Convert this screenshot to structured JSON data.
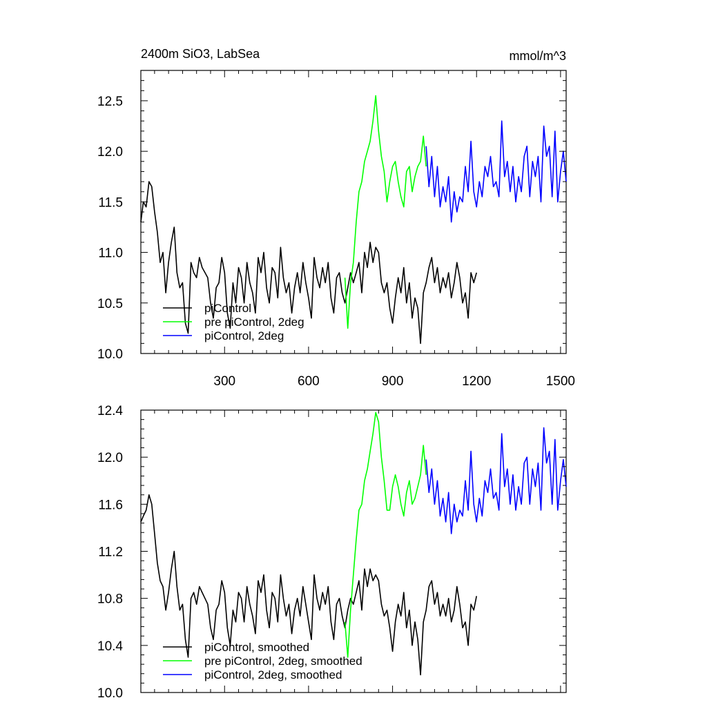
{
  "chart_data": [
    {
      "type": "line",
      "title_left": "2400m SiO3, LabSea",
      "title_right": "mmol/m^3",
      "xlim": [
        1,
        1520
      ],
      "ylim": [
        10.0,
        12.8
      ],
      "x_ticks": [
        300,
        600,
        900,
        1200,
        1500
      ],
      "x_tick_labels": [
        "300",
        "600",
        "900",
        "1200",
        "1500"
      ],
      "y_ticks": [
        10.0,
        10.5,
        11.0,
        11.5,
        12.0,
        12.5
      ],
      "y_tick_labels": [
        "10.0",
        "10.5",
        "11.0",
        "11.5",
        "12.0",
        "12.5"
      ],
      "legend_position": "bottom-left",
      "series": [
        {
          "name": "piControl",
          "color": "#000000",
          "x": [
            1,
            10,
            20,
            30,
            40,
            50,
            60,
            70,
            80,
            90,
            100,
            110,
            120,
            130,
            140,
            150,
            160,
            170,
            180,
            190,
            200,
            210,
            220,
            230,
            240,
            250,
            260,
            270,
            280,
            290,
            300,
            310,
            320,
            330,
            340,
            350,
            360,
            370,
            380,
            390,
            400,
            410,
            420,
            430,
            440,
            450,
            460,
            470,
            480,
            490,
            500,
            510,
            520,
            530,
            540,
            550,
            560,
            570,
            580,
            590,
            600,
            610,
            620,
            630,
            640,
            650,
            660,
            670,
            680,
            690,
            700,
            710,
            720,
            730,
            740,
            750,
            760,
            770,
            780,
            790,
            800,
            810,
            820,
            830,
            840,
            850,
            860,
            870,
            880,
            890,
            900,
            910,
            920,
            930,
            940,
            950,
            960,
            970,
            980,
            990,
            1000,
            1010,
            1020,
            1030,
            1040,
            1050,
            1060,
            1070,
            1080,
            1090,
            1100,
            1110,
            1120,
            1130,
            1140,
            1150,
            1160,
            1170,
            1180,
            1190,
            1200
          ],
          "y": [
            11.3,
            11.5,
            11.45,
            11.7,
            11.65,
            11.4,
            11.2,
            10.9,
            11.0,
            10.6,
            10.9,
            11.1,
            11.25,
            10.8,
            10.65,
            10.7,
            10.3,
            10.2,
            10.9,
            10.8,
            10.75,
            10.95,
            10.85,
            10.8,
            10.75,
            10.5,
            10.35,
            10.65,
            10.7,
            10.95,
            10.8,
            10.4,
            10.25,
            10.7,
            10.5,
            10.85,
            10.75,
            10.5,
            10.9,
            10.7,
            10.6,
            10.4,
            10.95,
            10.8,
            11.0,
            10.65,
            10.5,
            10.85,
            10.8,
            10.55,
            11.05,
            10.75,
            10.6,
            10.7,
            10.4,
            10.65,
            10.8,
            10.6,
            10.9,
            10.7,
            10.55,
            10.35,
            10.95,
            10.75,
            10.65,
            10.85,
            10.7,
            10.9,
            10.55,
            10.4,
            10.75,
            10.8,
            10.6,
            10.5,
            10.65,
            10.8,
            10.7,
            10.8,
            10.9,
            10.6,
            11.0,
            10.85,
            11.1,
            10.9,
            11.05,
            11.0,
            10.7,
            10.6,
            10.7,
            10.45,
            10.3,
            10.55,
            10.75,
            10.6,
            10.85,
            10.5,
            10.7,
            10.35,
            10.55,
            10.45,
            10.1,
            10.6,
            10.7,
            10.85,
            10.95,
            10.7,
            10.85,
            10.6,
            10.75,
            10.65,
            10.8,
            10.55,
            10.7,
            10.9,
            10.75,
            10.5,
            10.6,
            10.35,
            10.8,
            10.7,
            10.8
          ]
        },
        {
          "name": "pre piControl, 2deg",
          "color": "#00ff00",
          "x": [
            730,
            740,
            750,
            760,
            770,
            780,
            790,
            800,
            810,
            820,
            830,
            840,
            850,
            860,
            870,
            880,
            890,
            900,
            910,
            920,
            930,
            940,
            950,
            960,
            970,
            980,
            990,
            1000,
            1010,
            1020
          ],
          "y": [
            10.75,
            10.25,
            10.7,
            10.9,
            11.3,
            11.6,
            11.7,
            11.9,
            12.0,
            12.1,
            12.3,
            12.55,
            12.2,
            11.95,
            11.8,
            11.5,
            11.7,
            11.85,
            11.9,
            11.7,
            11.55,
            11.45,
            11.8,
            11.85,
            11.6,
            11.75,
            11.85,
            11.9,
            12.15,
            11.85
          ]
        },
        {
          "name": "piControl, 2deg",
          "color": "#0000ff",
          "x": [
            1020,
            1030,
            1040,
            1050,
            1060,
            1070,
            1080,
            1090,
            1100,
            1110,
            1120,
            1130,
            1140,
            1150,
            1160,
            1170,
            1180,
            1190,
            1200,
            1210,
            1220,
            1230,
            1240,
            1250,
            1260,
            1270,
            1280,
            1290,
            1300,
            1310,
            1320,
            1330,
            1340,
            1350,
            1360,
            1370,
            1380,
            1390,
            1400,
            1410,
            1420,
            1430,
            1440,
            1450,
            1460,
            1470,
            1480,
            1490,
            1500,
            1510,
            1520
          ],
          "y": [
            12.05,
            11.65,
            11.95,
            11.55,
            11.85,
            11.45,
            11.65,
            11.5,
            11.75,
            11.3,
            11.6,
            11.4,
            11.55,
            11.5,
            11.85,
            11.6,
            12.1,
            11.6,
            11.45,
            11.7,
            11.55,
            11.85,
            11.75,
            11.95,
            11.65,
            11.7,
            11.55,
            12.3,
            11.75,
            11.9,
            11.6,
            11.85,
            11.5,
            11.75,
            11.6,
            11.95,
            12.05,
            11.55,
            11.9,
            11.75,
            11.95,
            11.5,
            12.25,
            11.95,
            12.05,
            11.55,
            12.2,
            11.5,
            11.8,
            12.0,
            11.7
          ]
        }
      ]
    },
    {
      "type": "line",
      "xlim": [
        1,
        1520
      ],
      "ylim": [
        10.0,
        12.4
      ],
      "x_ticks": [
        300,
        600,
        900,
        1200,
        1500
      ],
      "y_ticks": [
        10.0,
        10.4,
        10.8,
        11.2,
        11.6,
        12.0,
        12.4
      ],
      "y_tick_labels": [
        "10.0",
        "10.4",
        "10.8",
        "11.2",
        "11.6",
        "12.0",
        "12.4"
      ],
      "legend_position": "bottom-left",
      "series": [
        {
          "name": "piControl, smoothed",
          "color": "#000000",
          "x": [
            1,
            10,
            20,
            30,
            40,
            50,
            60,
            70,
            80,
            90,
            100,
            110,
            120,
            130,
            140,
            150,
            160,
            170,
            180,
            190,
            200,
            210,
            220,
            230,
            240,
            250,
            260,
            270,
            280,
            290,
            300,
            310,
            320,
            330,
            340,
            350,
            360,
            370,
            380,
            390,
            400,
            410,
            420,
            430,
            440,
            450,
            460,
            470,
            480,
            490,
            500,
            510,
            520,
            530,
            540,
            550,
            560,
            570,
            580,
            590,
            600,
            610,
            620,
            630,
            640,
            650,
            660,
            670,
            680,
            690,
            700,
            710,
            720,
            730,
            740,
            750,
            760,
            770,
            780,
            790,
            800,
            810,
            820,
            830,
            840,
            850,
            860,
            870,
            880,
            890,
            900,
            910,
            920,
            930,
            940,
            950,
            960,
            970,
            980,
            990,
            1000,
            1010,
            1020,
            1030,
            1040,
            1050,
            1060,
            1070,
            1080,
            1090,
            1100,
            1110,
            1120,
            1130,
            1140,
            1150,
            1160,
            1170,
            1180,
            1190,
            1200
          ],
          "y": [
            11.45,
            11.5,
            11.55,
            11.68,
            11.6,
            11.35,
            11.1,
            10.95,
            10.9,
            10.7,
            10.85,
            11.05,
            11.2,
            10.9,
            10.7,
            10.75,
            10.45,
            10.3,
            10.8,
            10.85,
            10.75,
            10.9,
            10.85,
            10.8,
            10.75,
            10.55,
            10.45,
            10.7,
            10.75,
            10.95,
            10.85,
            10.55,
            10.4,
            10.7,
            10.6,
            10.85,
            10.8,
            10.6,
            10.9,
            10.75,
            10.65,
            10.5,
            10.95,
            10.85,
            11.0,
            10.7,
            10.55,
            10.85,
            10.8,
            10.6,
            11.0,
            10.8,
            10.65,
            10.75,
            10.5,
            10.7,
            10.8,
            10.65,
            10.9,
            10.75,
            10.6,
            10.45,
            11.0,
            10.8,
            10.7,
            10.85,
            10.75,
            10.9,
            10.6,
            10.45,
            10.75,
            10.8,
            10.65,
            10.55,
            10.7,
            10.8,
            10.75,
            10.85,
            10.95,
            10.7,
            11.05,
            10.9,
            11.05,
            10.95,
            11.0,
            10.95,
            10.75,
            10.65,
            10.7,
            10.55,
            10.35,
            10.6,
            10.75,
            10.65,
            10.85,
            10.55,
            10.7,
            10.4,
            10.6,
            10.45,
            10.15,
            10.6,
            10.7,
            10.9,
            10.95,
            10.75,
            10.85,
            10.65,
            10.75,
            10.65,
            10.8,
            10.6,
            10.7,
            10.9,
            10.75,
            10.55,
            10.6,
            10.4,
            10.75,
            10.7,
            10.82
          ]
        },
        {
          "name": "pre piControl, 2deg, smoothed",
          "color": "#00ff00",
          "x": [
            730,
            740,
            750,
            760,
            770,
            780,
            790,
            800,
            810,
            820,
            830,
            840,
            850,
            860,
            870,
            880,
            890,
            900,
            910,
            920,
            930,
            940,
            950,
            960,
            970,
            980,
            990,
            1000,
            1010,
            1020
          ],
          "y": [
            10.6,
            10.3,
            10.7,
            11.0,
            11.3,
            11.55,
            11.6,
            11.8,
            11.9,
            12.05,
            12.2,
            12.38,
            12.3,
            12.0,
            11.8,
            11.55,
            11.55,
            11.75,
            11.85,
            11.75,
            11.6,
            11.5,
            11.7,
            11.8,
            11.6,
            11.65,
            11.75,
            11.85,
            12.1,
            11.85
          ]
        },
        {
          "name": "piControl, 2deg, smoothed",
          "color": "#0000ff",
          "x": [
            1020,
            1030,
            1040,
            1050,
            1060,
            1070,
            1080,
            1090,
            1100,
            1110,
            1120,
            1130,
            1140,
            1150,
            1160,
            1170,
            1180,
            1190,
            1200,
            1210,
            1220,
            1230,
            1240,
            1250,
            1260,
            1270,
            1280,
            1290,
            1300,
            1310,
            1320,
            1330,
            1340,
            1350,
            1360,
            1370,
            1380,
            1390,
            1400,
            1410,
            1420,
            1430,
            1440,
            1450,
            1460,
            1470,
            1480,
            1490,
            1500,
            1510,
            1520
          ],
          "y": [
            11.98,
            11.7,
            11.9,
            11.6,
            11.8,
            11.5,
            11.65,
            11.45,
            11.7,
            11.35,
            11.6,
            11.45,
            11.55,
            11.5,
            11.8,
            11.55,
            12.05,
            11.6,
            11.45,
            11.65,
            11.5,
            11.8,
            11.7,
            11.9,
            11.65,
            11.7,
            11.55,
            12.2,
            11.75,
            11.9,
            11.6,
            11.85,
            11.55,
            11.75,
            11.6,
            11.95,
            12.0,
            11.6,
            11.9,
            11.75,
            11.95,
            11.55,
            12.25,
            11.95,
            12.05,
            11.6,
            12.15,
            11.55,
            11.8,
            11.98,
            11.75
          ]
        }
      ]
    }
  ]
}
